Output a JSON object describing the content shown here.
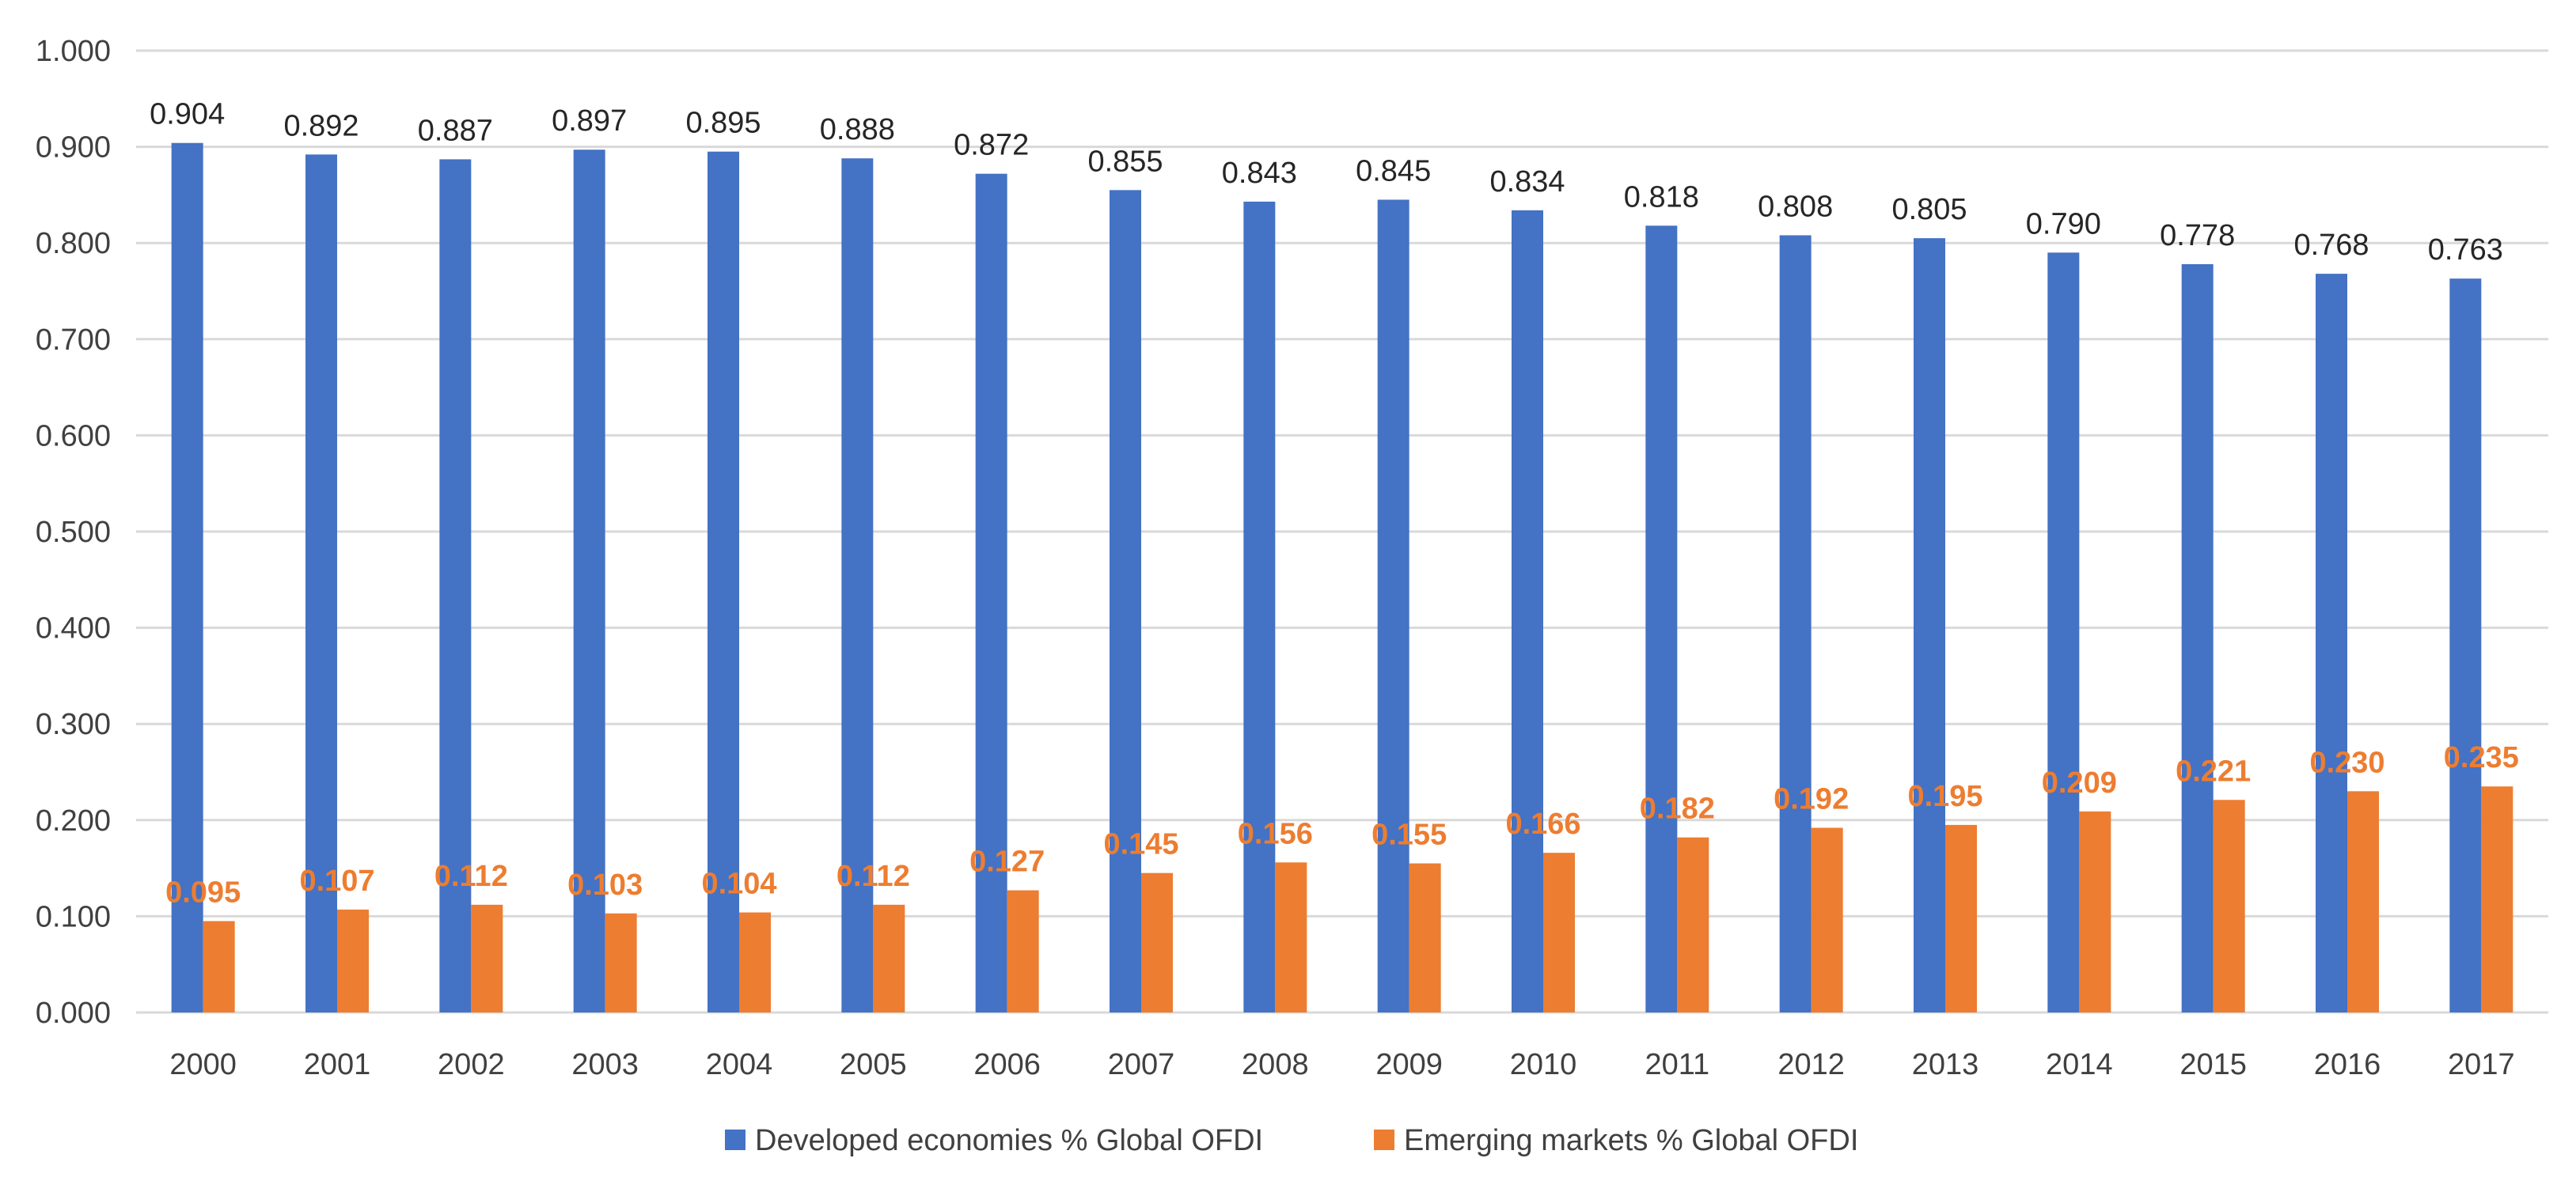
{
  "chart_data": {
    "type": "bar",
    "title": "",
    "xlabel": "",
    "ylabel": "",
    "ylim": [
      0,
      1.0
    ],
    "yticks": [
      "0.000",
      "0.100",
      "0.200",
      "0.300",
      "0.400",
      "0.500",
      "0.600",
      "0.700",
      "0.800",
      "0.900",
      "1.000"
    ],
    "categories": [
      "2000",
      "2001",
      "2002",
      "2003",
      "2004",
      "2005",
      "2006",
      "2007",
      "2008",
      "2009",
      "2010",
      "2011",
      "2012",
      "2013",
      "2014",
      "2015",
      "2016",
      "2017"
    ],
    "series": [
      {
        "name": "Developed economies % Global OFDI",
        "color": "#4472c4",
        "values": [
          0.904,
          0.892,
          0.887,
          0.897,
          0.895,
          0.888,
          0.872,
          0.855,
          0.843,
          0.845,
          0.834,
          0.818,
          0.808,
          0.805,
          0.79,
          0.778,
          0.768,
          0.763
        ],
        "labels": [
          "0.904",
          "0.892",
          "0.887",
          "0.897",
          "0.895",
          "0.888",
          "0.872",
          "0.855",
          "0.843",
          "0.845",
          "0.834",
          "0.818",
          "0.808",
          "0.805",
          "0.790",
          "0.778",
          "0.768",
          "0.763"
        ]
      },
      {
        "name": "Emerging markets % Global OFDI",
        "color": "#ed7d31",
        "values": [
          0.095,
          0.107,
          0.112,
          0.103,
          0.104,
          0.112,
          0.127,
          0.145,
          0.156,
          0.155,
          0.166,
          0.182,
          0.192,
          0.195,
          0.209,
          0.221,
          0.23,
          0.235
        ],
        "labels": [
          "0.095",
          "0.107",
          "0.112",
          "0.103",
          "0.104",
          "0.112",
          "0.127",
          "0.145",
          "0.156",
          "0.155",
          "0.166",
          "0.182",
          "0.192",
          "0.195",
          "0.209",
          "0.221",
          "0.230",
          "0.235"
        ]
      }
    ],
    "grid": true,
    "legend": "bottom-center"
  }
}
